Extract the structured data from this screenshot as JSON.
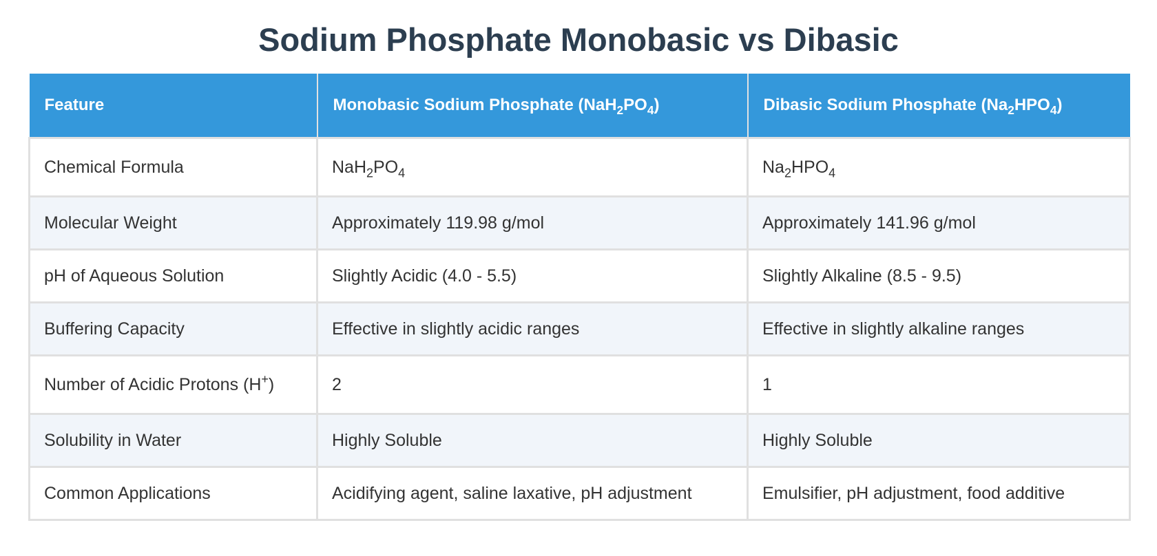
{
  "title": "Sodium Phosphate Monobasic vs Dibasic",
  "table": {
    "headers": {
      "feature": "Feature",
      "mono": {
        "prefix": "Monobasic Sodium Phosphate (NaH",
        "sub1": "2",
        "mid": "PO",
        "sub2": "4",
        "suffix": ")"
      },
      "di": {
        "prefix": "Dibasic Sodium Phosphate (Na",
        "sub1": "2",
        "mid": "HPO",
        "sub2": "4",
        "suffix": ")"
      }
    },
    "rows": [
      {
        "feature": "Chemical Formula",
        "mono": {
          "a": "NaH",
          "s1": "2",
          "b": "PO",
          "s2": "4"
        },
        "di": {
          "a": "Na",
          "s1": "2",
          "b": "HPO",
          "s2": "4"
        }
      },
      {
        "feature": "Molecular Weight",
        "mono": "Approximately 119.98 g/mol",
        "di": "Approximately 141.96 g/mol"
      },
      {
        "feature": "pH of Aqueous Solution",
        "mono": "Slightly Acidic (4.0 - 5.5)",
        "di": "Slightly Alkaline (8.5 - 9.5)"
      },
      {
        "feature": "Buffering Capacity",
        "mono": "Effective in slightly acidic ranges",
        "di": "Effective in slightly alkaline ranges"
      },
      {
        "feature": {
          "prefix": "Number of Acidic Protons (H",
          "sup": "+",
          "suffix": ")"
        },
        "mono": "2",
        "di": "1"
      },
      {
        "feature": "Solubility in Water",
        "mono": "Highly Soluble",
        "di": "Highly Soluble"
      },
      {
        "feature": "Common Applications",
        "mono": "Acidifying agent, saline laxative, pH adjustment",
        "di": "Emulsifier, pH adjustment, food additive"
      }
    ]
  },
  "colors": {
    "title": "#2c3e50",
    "header_bg": "#3498db",
    "header_text": "#ffffff",
    "alt_row_bg": "#f1f5fa",
    "border": "#e0e0e0"
  }
}
